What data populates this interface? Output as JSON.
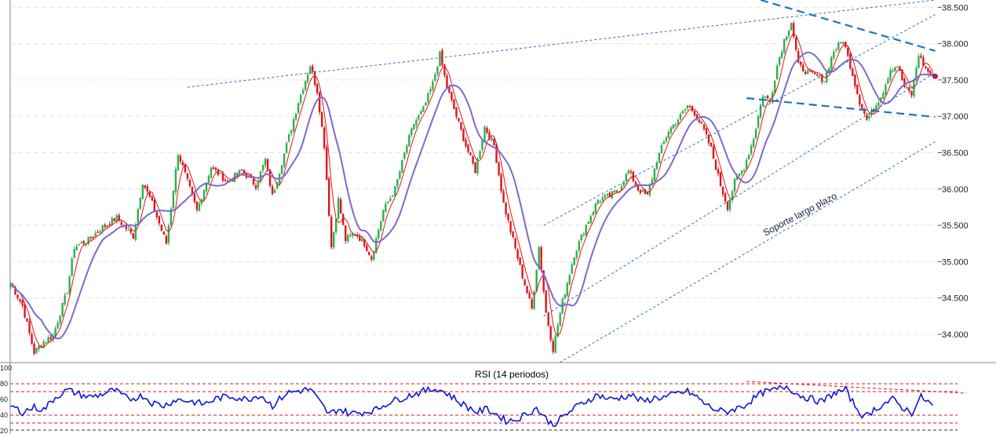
{
  "chart_data": [
    {
      "type": "candlestick",
      "title": "",
      "y_axis_side": "right",
      "ylim": [
        33600,
        38600
      ],
      "yticks": [
        "34.000",
        "34.500",
        "35.000",
        "35.500",
        "36.000",
        "36.500",
        "37.000",
        "37.500",
        "38.000",
        "38.500"
      ],
      "ytick_values": [
        34000,
        34500,
        35000,
        35500,
        36000,
        36500,
        37000,
        37500,
        38000,
        38500
      ],
      "grid": true,
      "candles": {
        "up_color": "#2db04b",
        "down_color": "#e0141a",
        "anchors": [
          [
            0,
            34700
          ],
          [
            5,
            34400
          ],
          [
            10,
            33750
          ],
          [
            14,
            33900
          ],
          [
            18,
            33980
          ],
          [
            24,
            34600
          ],
          [
            27,
            35200
          ],
          [
            33,
            35300
          ],
          [
            38,
            35450
          ],
          [
            45,
            35600
          ],
          [
            52,
            35350
          ],
          [
            56,
            36100
          ],
          [
            60,
            35800
          ],
          [
            66,
            35250
          ],
          [
            71,
            36500
          ],
          [
            76,
            36000
          ],
          [
            79,
            35700
          ],
          [
            85,
            36300
          ],
          [
            92,
            36100
          ],
          [
            98,
            36250
          ],
          [
            104,
            36050
          ],
          [
            108,
            36400
          ],
          [
            111,
            35900
          ],
          [
            117,
            36600
          ],
          [
            122,
            37200
          ],
          [
            127,
            37700
          ],
          [
            130,
            37350
          ],
          [
            133,
            36600
          ],
          [
            136,
            35200
          ],
          [
            139,
            35850
          ],
          [
            142,
            35300
          ],
          [
            146,
            35400
          ],
          [
            150,
            35250
          ],
          [
            153,
            35050
          ],
          [
            158,
            35700
          ],
          [
            163,
            36000
          ],
          [
            168,
            36600
          ],
          [
            171,
            36900
          ],
          [
            175,
            37100
          ],
          [
            179,
            37450
          ],
          [
            182,
            37850
          ],
          [
            185,
            37400
          ],
          [
            189,
            37000
          ],
          [
            193,
            36600
          ],
          [
            197,
            36250
          ],
          [
            201,
            36850
          ],
          [
            205,
            36600
          ],
          [
            209,
            35800
          ],
          [
            213,
            35300
          ],
          [
            217,
            34800
          ],
          [
            221,
            34350
          ],
          [
            224,
            35200
          ],
          [
            227,
            34300
          ],
          [
            230,
            33800
          ],
          [
            234,
            34450
          ],
          [
            239,
            35100
          ],
          [
            244,
            35500
          ],
          [
            249,
            35850
          ],
          [
            254,
            35900
          ],
          [
            258,
            36000
          ],
          [
            262,
            36250
          ],
          [
            266,
            36000
          ],
          [
            270,
            35900
          ],
          [
            274,
            36400
          ],
          [
            279,
            36800
          ],
          [
            284,
            37000
          ],
          [
            287,
            37150
          ],
          [
            290,
            37050
          ],
          [
            294,
            36800
          ],
          [
            297,
            36550
          ],
          [
            301,
            36050
          ],
          [
            304,
            35750
          ],
          [
            307,
            36100
          ],
          [
            311,
            36300
          ],
          [
            315,
            36700
          ],
          [
            319,
            37300
          ],
          [
            322,
            37200
          ],
          [
            325,
            37700
          ],
          [
            328,
            38050
          ],
          [
            331,
            38300
          ],
          [
            334,
            37700
          ],
          [
            338,
            37600
          ],
          [
            342,
            37550
          ],
          [
            345,
            37500
          ],
          [
            349,
            37900
          ],
          [
            353,
            38050
          ],
          [
            356,
            37700
          ],
          [
            360,
            37200
          ],
          [
            363,
            36950
          ],
          [
            366,
            37100
          ],
          [
            370,
            37350
          ],
          [
            373,
            37650
          ],
          [
            376,
            37700
          ],
          [
            379,
            37400
          ],
          [
            382,
            37300
          ],
          [
            385,
            37850
          ],
          [
            388,
            37650
          ],
          [
            391,
            37550
          ]
        ],
        "count": 392,
        "last_price": 37550
      },
      "moving_averages": [
        {
          "color": "#e0141a",
          "period": 5
        },
        {
          "color": "#7b6ad0",
          "period": 14
        }
      ],
      "trendlines": [
        {
          "style": "dotted",
          "color": "#1e73be",
          "from": [
            75,
            37400
          ],
          "to": [
            392,
            38600
          ]
        },
        {
          "style": "dotted",
          "color": "#1e73be",
          "from": [
            226,
            35500
          ],
          "to": [
            392,
            38400
          ]
        },
        {
          "style": "dotted",
          "color": "#1e73be",
          "from": [
            226,
            34250
          ],
          "to": [
            392,
            37600
          ]
        },
        {
          "style": "dotted",
          "color": "#1e73be",
          "from": [
            226,
            33480
          ],
          "to": [
            392,
            36650
          ]
        },
        {
          "style": "dashed",
          "color": "#1e73be",
          "from": [
            318,
            38600
          ],
          "to": [
            392,
            37900
          ]
        },
        {
          "style": "dashed",
          "color": "#1e73be",
          "from": [
            312,
            37250
          ],
          "to": [
            392,
            36990
          ]
        }
      ],
      "annotations": [
        {
          "text": "Soporte largo plazo",
          "x": 320,
          "y": 35350,
          "rotate": -28
        }
      ]
    },
    {
      "type": "line",
      "title": "RSI (14 periodos)",
      "ylim": [
        20,
        100
      ],
      "yticks": [
        "100",
        "80",
        "60",
        "40",
        "20"
      ],
      "ytick_values": [
        100,
        80,
        60,
        40,
        20
      ],
      "series": [
        {
          "color": "#0a18d6",
          "anchors": [
            [
              0,
              52
            ],
            [
              5,
              44
            ],
            [
              10,
              50
            ],
            [
              14,
              47
            ],
            [
              19,
              63
            ],
            [
              24,
              72
            ],
            [
              28,
              68
            ],
            [
              33,
              63
            ],
            [
              38,
              66
            ],
            [
              44,
              72
            ],
            [
              50,
              60
            ],
            [
              56,
              65
            ],
            [
              60,
              56
            ],
            [
              65,
              52
            ],
            [
              70,
              60
            ],
            [
              76,
              58
            ],
            [
              82,
              54
            ],
            [
              88,
              62
            ],
            [
              94,
              64
            ],
            [
              100,
              60
            ],
            [
              106,
              66
            ],
            [
              111,
              52
            ],
            [
              117,
              68
            ],
            [
              122,
              71
            ],
            [
              127,
              73
            ],
            [
              131,
              57
            ],
            [
              135,
              41
            ],
            [
              139,
              48
            ],
            [
              144,
              42
            ],
            [
              150,
              44
            ],
            [
              155,
              47
            ],
            [
              160,
              56
            ],
            [
              165,
              61
            ],
            [
              171,
              67
            ],
            [
              176,
              71
            ],
            [
              181,
              74
            ],
            [
              186,
              66
            ],
            [
              190,
              57
            ],
            [
              194,
              50
            ],
            [
              198,
              44
            ],
            [
              202,
              48
            ],
            [
              206,
              41
            ],
            [
              210,
              33
            ],
            [
              214,
              34
            ],
            [
              219,
              42
            ],
            [
              223,
              49
            ],
            [
              227,
              35
            ],
            [
              230,
              28
            ],
            [
              234,
              37
            ],
            [
              239,
              49
            ],
            [
              244,
              58
            ],
            [
              249,
              66
            ],
            [
              254,
              60
            ],
            [
              258,
              62
            ],
            [
              263,
              66
            ],
            [
              268,
              57
            ],
            [
              273,
              62
            ],
            [
              278,
              63
            ],
            [
              283,
              68
            ],
            [
              287,
              70
            ],
            [
              291,
              63
            ],
            [
              295,
              53
            ],
            [
              299,
              47
            ],
            [
              303,
              44
            ],
            [
              307,
              48
            ],
            [
              311,
              52
            ],
            [
              315,
              61
            ],
            [
              319,
              69
            ],
            [
              324,
              72
            ],
            [
              329,
              77
            ],
            [
              334,
              66
            ],
            [
              339,
              61
            ],
            [
              344,
              57
            ],
            [
              349,
              68
            ],
            [
              354,
              72
            ],
            [
              358,
              52
            ],
            [
              362,
              37
            ],
            [
              366,
              47
            ],
            [
              370,
              54
            ],
            [
              374,
              60
            ],
            [
              378,
              50
            ],
            [
              382,
              43
            ],
            [
              386,
              63
            ],
            [
              389,
              57
            ],
            [
              391,
              52
            ]
          ],
          "count": 392
        }
      ],
      "reference_lines": [
        {
          "value": 80,
          "color": "#e0141a",
          "style": "dashed"
        },
        {
          "value": 70,
          "color": "#e0141a",
          "style": "dashed"
        },
        {
          "value": 40,
          "color": "#e0141a",
          "style": "dashed"
        },
        {
          "value": 30,
          "color": "#e0141a",
          "style": "dashed"
        }
      ],
      "trendlines": [
        {
          "style": "dashed",
          "color": "#e0141a",
          "from": [
            312,
            83
          ],
          "to": [
            392,
            63
          ]
        }
      ]
    }
  ]
}
